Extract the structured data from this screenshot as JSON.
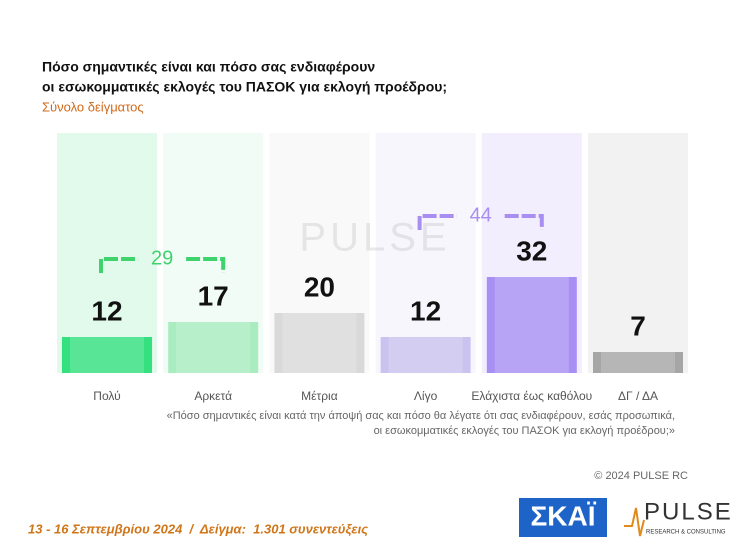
{
  "title": [
    "Πόσο σημαντικές είναι και πόσο σας ενδιαφέρουν",
    "οι εσωκομματικές εκλογές του ΠΑΣΟΚ για εκλογή προέδρου;"
  ],
  "subtitle": "Σύνολο δείγματος",
  "chart_data": {
    "type": "bar",
    "categories": [
      "Πολύ",
      "Αρκετά",
      "Μέτρια",
      "Λίγο",
      "Ελάχιστα έως καθόλου",
      "ΔΓ / ΔΑ"
    ],
    "values": [
      12,
      17,
      20,
      12,
      32,
      7
    ],
    "colors": [
      "#35e07f",
      "#a9ecc0",
      "#d9d9d9",
      "#cbc3ef",
      "#a890f2",
      "#a6a6a6"
    ],
    "brackets": [
      {
        "value": 29,
        "color": "#3fd36e"
      },
      {
        "value": 44,
        "color": "#a88ef0"
      }
    ]
  },
  "watermark": "PULSE",
  "question": [
    "«Πόσο σημαντικές είναι κατά την άποψή σας και πόσο θα λέγατε ότι σας ενδιαφέρουν, εσάς προσωπικά,",
    "οι εσωκομματικές εκλογές του ΠΑΣΟΚ για εκλογή προέδρου;»"
  ],
  "copyright": "© 2024 PULSE RC",
  "footer": "13 - 16 Σεπτεμβρίου 2024  /  Δείγμα:  1.301 συνεντεύξεις",
  "logos": {
    "skai": "ΣΚΑΪ",
    "pulse": "PULSE",
    "pulse_sub": "RESEARCH & CONSULTING"
  }
}
